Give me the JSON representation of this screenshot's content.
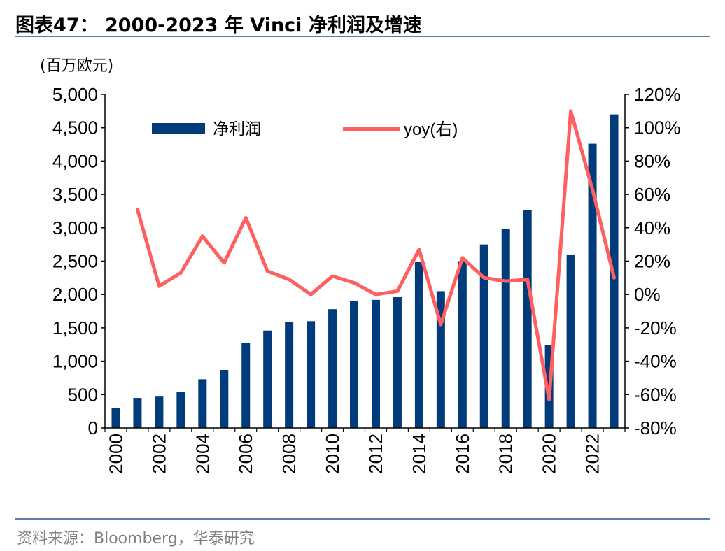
{
  "header": {
    "title": "图表47：  2000-2023 年 Vinci 净利润及增速"
  },
  "unit": "(百万欧元)",
  "source": "资料来源：Bloomberg，华泰研究",
  "colors": {
    "bar": "#003B7B",
    "line": "#FF5F5F",
    "rule": "#5b7fae"
  },
  "chart_data": {
    "type": "bar",
    "title": "2000-2023 年 Vinci 净利润及增速",
    "x": [
      2000,
      2001,
      2002,
      2003,
      2004,
      2005,
      2006,
      2007,
      2008,
      2009,
      2010,
      2011,
      2012,
      2013,
      2014,
      2015,
      2016,
      2017,
      2018,
      2019,
      2020,
      2021,
      2022,
      2023
    ],
    "x_tick_labels": [
      "2000",
      "2002",
      "2004",
      "2006",
      "2008",
      "2010",
      "2012",
      "2014",
      "2016",
      "2018",
      "2020",
      "2022"
    ],
    "series": [
      {
        "name": "净利润",
        "type": "bar",
        "axis": "left",
        "values": [
          300,
          450,
          470,
          540,
          730,
          870,
          1270,
          1460,
          1590,
          1600,
          1780,
          1900,
          1920,
          1960,
          2490,
          2050,
          2500,
          2750,
          2980,
          3260,
          1240,
          2600,
          4260,
          4700
        ]
      },
      {
        "name": "yoy(右)",
        "type": "line",
        "axis": "right",
        "values": [
          null,
          51,
          5,
          13,
          35,
          19,
          46,
          14,
          9,
          0,
          11,
          7,
          0,
          2,
          27,
          -18,
          22,
          10,
          8,
          9,
          -63,
          110,
          63,
          10
        ]
      }
    ],
    "left_axis": {
      "min": 0,
      "max": 5000,
      "step": 500,
      "tick_labels": [
        "0",
        "500",
        "1,000",
        "1,500",
        "2,000",
        "2,500",
        "3,000",
        "3,500",
        "4,000",
        "4,500",
        "5,000"
      ]
    },
    "right_axis": {
      "min": -80,
      "max": 120,
      "step": 20,
      "tick_labels": [
        "-80%",
        "-60%",
        "-40%",
        "-20%",
        "0%",
        "20%",
        "40%",
        "60%",
        "80%",
        "100%",
        "120%"
      ]
    },
    "legend": {
      "position": "top",
      "bar_label": "净利润",
      "line_label": "yoy(右)"
    },
    "grid": false
  }
}
